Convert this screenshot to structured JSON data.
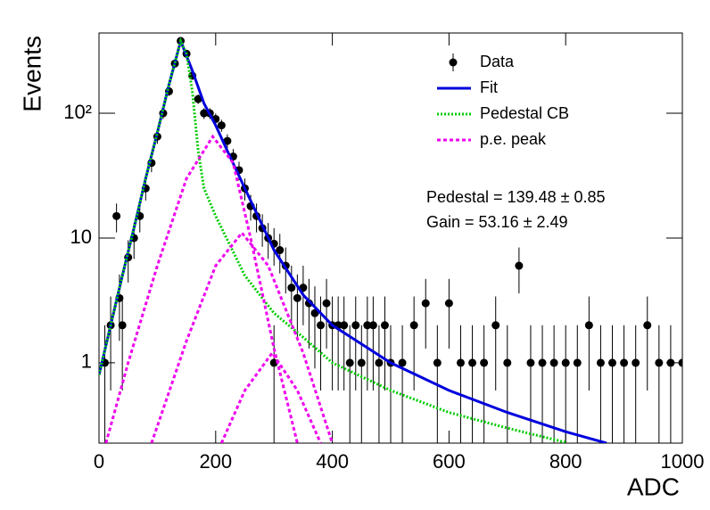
{
  "chart_data": {
    "type": "scatter",
    "x_label": "ADC",
    "y_label": "Events",
    "xlim": [
      0,
      1000
    ],
    "ylim": [
      0.227,
      440
    ],
    "log_y": true,
    "xticks": [
      0,
      200,
      400,
      600,
      800,
      1000
    ],
    "yticks": [
      1,
      10,
      {
        "value": 100,
        "label": "10²"
      }
    ],
    "legend": "upper right",
    "annotations": [
      "Pedestal = 139.48 ± 0.85",
      "Gain = 53.16 ± 2.49"
    ],
    "series": [
      {
        "name": "Data",
        "color": "#000000",
        "style": "points",
        "x": [
          10,
          20,
          30,
          35,
          40,
          50,
          60,
          70,
          80,
          90,
          100,
          110,
          120,
          130,
          140,
          150,
          160,
          170,
          180,
          190,
          200,
          210,
          220,
          230,
          240,
          250,
          260,
          270,
          280,
          290,
          300,
          300,
          310,
          320,
          330,
          340,
          350,
          360,
          370,
          380,
          390,
          400,
          410,
          420,
          430,
          440,
          450,
          460,
          470,
          480,
          490,
          500,
          520,
          540,
          560,
          580,
          600,
          620,
          640,
          660,
          680,
          700,
          720,
          740,
          760,
          780,
          800,
          820,
          840,
          860,
          880,
          900,
          920,
          940,
          960,
          980,
          1000
        ],
        "values": [
          1,
          2,
          15,
          3.3,
          2,
          7,
          10,
          15,
          25,
          40,
          65,
          100,
          150,
          250,
          380,
          300,
          200,
          130,
          100,
          100,
          90,
          80,
          60,
          45,
          35,
          25,
          18,
          15,
          12,
          10,
          9,
          1,
          8,
          6,
          4,
          3.3,
          4,
          3,
          2.5,
          2,
          3,
          2,
          2,
          2,
          1,
          2,
          1,
          2,
          2,
          1,
          2,
          1,
          1,
          2,
          3,
          1,
          3,
          1,
          1,
          1,
          2,
          1,
          6,
          1,
          1,
          1,
          1,
          1,
          2,
          1,
          1,
          1,
          1,
          2,
          1,
          1,
          1
        ],
        "errors": [
          1,
          1.4,
          3.9,
          1.8,
          1.4,
          2.6,
          3.2,
          3.9,
          5,
          6.3,
          8.1,
          10,
          12.2,
          15.8,
          19.5,
          17.3,
          14.1,
          11.4,
          10,
          10,
          9.5,
          8.9,
          7.7,
          6.7,
          5.9,
          5,
          4.2,
          3.9,
          3.5,
          3.2,
          3,
          1,
          2.8,
          2.4,
          2,
          1.8,
          2,
          1.7,
          1.6,
          1.4,
          1.7,
          1.4,
          1.4,
          1.4,
          1,
          1.4,
          1,
          1.4,
          1.4,
          1,
          1.4,
          1,
          1,
          1.4,
          1.7,
          1,
          1.7,
          1,
          1,
          1,
          1.4,
          1,
          2.4,
          1,
          1,
          1,
          1,
          1,
          1.4,
          1,
          1,
          1,
          1,
          1.4,
          1,
          1,
          1
        ]
      },
      {
        "name": "Fit",
        "color": "#0000dd",
        "style": "solid",
        "x": [
          0,
          20,
          40,
          60,
          80,
          100,
          120,
          140,
          160,
          180,
          200,
          220,
          250,
          300,
          350,
          400,
          500,
          600,
          700,
          800,
          870
        ],
        "values": [
          0.8,
          2,
          5,
          12,
          30,
          70,
          170,
          380,
          220,
          120,
          80,
          50,
          25,
          8,
          3.5,
          2,
          1,
          0.6,
          0.4,
          0.28,
          0.227
        ]
      },
      {
        "name": "Pedestal CB",
        "color": "#00cc00",
        "style": "dotted",
        "x": [
          0,
          20,
          40,
          60,
          80,
          100,
          120,
          140,
          150,
          160,
          170,
          180,
          200,
          250,
          300,
          350,
          400,
          500,
          600,
          700,
          800
        ],
        "values": [
          0.8,
          2,
          5,
          12,
          30,
          70,
          170,
          380,
          300,
          150,
          50,
          25,
          15,
          5,
          2.5,
          1.6,
          1,
          0.6,
          0.4,
          0.3,
          0.23
        ]
      },
      {
        "name": "p.e. peak",
        "color": "#ee00ee",
        "style": "dashed",
        "x": [
          12,
          50,
          100,
          150,
          195,
          230,
          260,
          300,
          340,
          null,
          90,
          150,
          200,
          245,
          290,
          350,
          400,
          null,
          210,
          250,
          297,
          340,
          380
        ],
        "values": [
          0.227,
          1,
          6,
          30,
          65,
          40,
          10,
          1.3,
          0.227,
          null,
          0.227,
          1.5,
          6,
          11,
          6,
          1.2,
          0.227,
          null,
          0.227,
          0.6,
          1.2,
          0.6,
          0.227
        ]
      }
    ]
  }
}
